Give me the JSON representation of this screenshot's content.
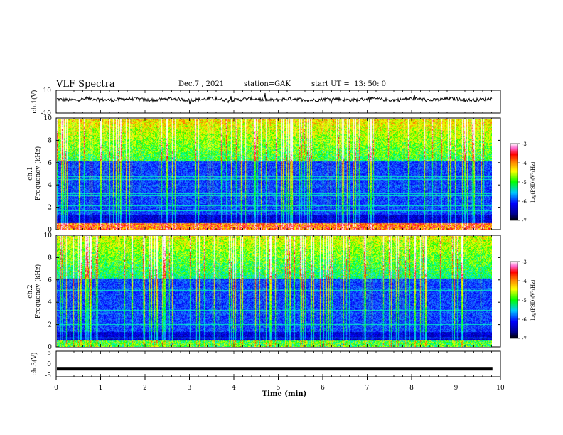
{
  "header": {
    "title": "VLF Spectra",
    "date": "Dec.7 , 2021",
    "station": "station=GAK",
    "start": "start UT =  13: 50: 0"
  },
  "chart_data": [
    {
      "type": "line",
      "panel": "ch1-waveform",
      "ylabel": "ch.1(V)",
      "ylim": [
        -10,
        10
      ],
      "yticks": [
        "10",
        "-10"
      ],
      "xlim": [
        0,
        10
      ],
      "baseline": 2
    },
    {
      "type": "heatmap",
      "panel": "ch1-spectrogram",
      "ylabel": "ch.1\nFrequency (kHz)",
      "ylabel_lines": [
        "ch.1",
        "Frequency  (kHz)"
      ],
      "ylim": [
        0,
        10
      ],
      "yticks": [
        "0",
        "2",
        "4",
        "6",
        "8",
        "10"
      ],
      "xlim": [
        0,
        10
      ],
      "colorbar": {
        "label": "log(PSD)(V²/Hz)",
        "ticks": [
          "-3",
          "-4",
          "-5",
          "-6",
          "-7"
        ],
        "range": [
          -7,
          -3
        ]
      }
    },
    {
      "type": "heatmap",
      "panel": "ch2-spectrogram",
      "ylabel_lines": [
        "ch.2",
        "Frequency  (kHz)"
      ],
      "ylim": [
        0,
        10
      ],
      "yticks": [
        "0",
        "2",
        "4",
        "6",
        "8",
        "10"
      ],
      "xlim": [
        0,
        10
      ],
      "colorbar": {
        "label": "log(PSD)(V²/Hz)",
        "ticks": [
          "-3",
          "-4",
          "-5",
          "-6",
          "-7"
        ],
        "range": [
          -7,
          -3
        ]
      }
    },
    {
      "type": "line",
      "panel": "ch3-waveform",
      "ylabel": "ch.3(V)",
      "ylim": [
        -5,
        5
      ],
      "yticks": [
        "5",
        "0",
        "-5"
      ],
      "xlim": [
        0,
        10
      ],
      "baseline": -2
    }
  ],
  "xaxis": {
    "label": "Time  (min)",
    "ticks": [
      "0",
      "1",
      "2",
      "3",
      "4",
      "5",
      "6",
      "7",
      "8",
      "9",
      "10"
    ]
  },
  "colors": {
    "colormap": [
      "#000000",
      "#00008b",
      "#0000ff",
      "#1e64ff",
      "#00c8ff",
      "#00ffb4",
      "#00ff00",
      "#c8ff00",
      "#ffff00",
      "#ff8000",
      "#ff0000",
      "#ff66cc",
      "#ffffff"
    ]
  }
}
